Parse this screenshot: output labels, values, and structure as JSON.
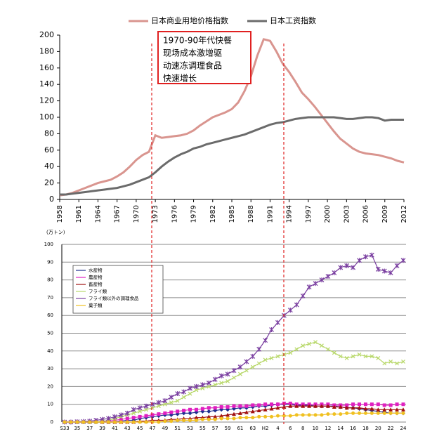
{
  "chart_data": [
    {
      "type": "line",
      "x": [
        1958,
        1959,
        1960,
        1961,
        1962,
        1963,
        1964,
        1965,
        1966,
        1967,
        1968,
        1969,
        1970,
        1971,
        1972,
        1973,
        1974,
        1975,
        1976,
        1977,
        1978,
        1979,
        1980,
        1981,
        1982,
        1983,
        1984,
        1985,
        1986,
        1987,
        1988,
        1989,
        1990,
        1991,
        1992,
        1993,
        1994,
        1995,
        1996,
        1997,
        1998,
        1999,
        2000,
        2001,
        2002,
        2003,
        2004,
        2005,
        2006,
        2007,
        2008,
        2009,
        2010,
        2011,
        2012
      ],
      "xlim": [
        1958,
        2012
      ],
      "xticks": [
        1958,
        1961,
        1964,
        1967,
        1970,
        1973,
        1976,
        1979,
        1982,
        1985,
        1988,
        1991,
        1994,
        1997,
        2000,
        2003,
        2006,
        2009,
        2012
      ],
      "ylim": [
        0,
        200
      ],
      "yticks": [
        0,
        20,
        40,
        60,
        80,
        100,
        120,
        140,
        160,
        180,
        200
      ],
      "annotation": [
        "1970-90年代快餐",
        "现场成本激增驱",
        "动速冻调理食品",
        "快速增长"
      ],
      "series": [
        {
          "name": "日本商业用地价格指数",
          "color": "#d9958f",
          "values": [
            5,
            6,
            8,
            11,
            14,
            17,
            20,
            22,
            24,
            28,
            33,
            40,
            48,
            54,
            58,
            78,
            75,
            76,
            77,
            78,
            80,
            84,
            90,
            95,
            100,
            103,
            106,
            110,
            118,
            132,
            150,
            175,
            195,
            193,
            180,
            165,
            155,
            143,
            130,
            122,
            113,
            103,
            93,
            83,
            74,
            68,
            62,
            58,
            56,
            55,
            54,
            52,
            50,
            47,
            45
          ]
        },
        {
          "name": "日本工资指数",
          "color": "#6b6b6b",
          "values": [
            6,
            6,
            7,
            8,
            9,
            10,
            11,
            12,
            13,
            14,
            16,
            18,
            21,
            24,
            27,
            33,
            40,
            46,
            51,
            55,
            58,
            62,
            64,
            67,
            69,
            71,
            73,
            75,
            77,
            79,
            82,
            85,
            88,
            91,
            93,
            94,
            96,
            98,
            99,
            100,
            100,
            100,
            100,
            100,
            99,
            98,
            98,
            99,
            100,
            100,
            99,
            96,
            97,
            97,
            97
          ]
        }
      ]
    },
    {
      "type": "line",
      "y_label": "(万トン)",
      "categories": [
        "S33",
        null,
        "35",
        null,
        "37",
        null,
        "39",
        null,
        "41",
        null,
        "43",
        null,
        "45",
        null,
        "47",
        null,
        "49",
        null,
        "51",
        null,
        "53",
        null,
        "55",
        null,
        "57",
        null,
        "59",
        null,
        "61",
        null,
        "63",
        null,
        "H2",
        null,
        "4",
        null,
        "6",
        null,
        "8",
        null,
        "10",
        null,
        "12",
        null,
        "14",
        null,
        "16",
        null,
        "18",
        null,
        "20",
        null,
        "22",
        null,
        "24"
      ],
      "ylim": [
        0,
        100
      ],
      "yticks": [
        0,
        10,
        20,
        30,
        40,
        50,
        60,
        70,
        80,
        90,
        100
      ],
      "grid": true,
      "series": [
        {
          "name": "水産物",
          "color": "#1f2f8f",
          "marker": "diamond",
          "values": [
            0,
            0,
            0,
            0,
            0,
            0,
            0,
            0,
            0,
            0.5,
            1,
            1,
            2,
            2.5,
            3,
            3.5,
            4,
            4,
            4.5,
            5,
            5,
            5.5,
            6,
            6,
            6.5,
            7,
            7,
            7.5,
            8,
            8,
            8.5,
            9,
            9,
            9.5,
            10,
            10,
            10,
            9.5,
            9.5,
            9.5,
            9,
            9,
            9,
            9,
            8.5,
            8,
            8,
            7.5,
            7,
            6.5,
            6,
            5.5,
            5,
            5,
            5
          ]
        },
        {
          "name": "農産物",
          "color": "#e020c0",
          "marker": "square",
          "values": [
            0,
            0,
            0,
            0,
            0,
            0,
            0.5,
            0.5,
            1,
            1.5,
            2,
            2.5,
            3,
            3.5,
            4,
            4.5,
            5,
            5.5,
            6,
            6.5,
            7,
            7,
            7.5,
            8,
            8,
            8.5,
            8.5,
            9,
            9,
            9,
            9.5,
            9.5,
            10,
            10,
            10,
            10.5,
            10.5,
            10,
            10,
            10,
            10,
            10,
            10,
            9.5,
            9.5,
            9.5,
            10,
            10,
            10,
            10,
            10,
            9.5,
            9.5,
            10,
            10
          ]
        },
        {
          "name": "畜産物",
          "color": "#a01010",
          "marker": "triangle",
          "values": [
            0,
            0,
            0,
            0,
            0,
            0,
            0,
            0,
            0,
            0,
            0,
            0,
            0.5,
            0.5,
            1,
            1,
            1,
            1.5,
            1.5,
            2,
            2,
            2.5,
            2.5,
            3,
            3,
            3.5,
            4,
            4.5,
            5,
            5.5,
            6,
            6.5,
            7,
            7.5,
            8,
            8.5,
            9,
            9,
            9,
            9,
            9,
            9,
            9,
            8.5,
            8.5,
            8,
            8,
            8,
            7.5,
            7.5,
            7,
            7,
            7,
            7,
            7
          ]
        },
        {
          "name": "フライ類",
          "color": "#b8d86a",
          "marker": "x",
          "values": [
            0,
            0,
            0,
            0,
            0,
            0,
            0.5,
            1,
            2,
            3,
            4,
            5,
            6,
            7,
            8,
            9,
            10,
            11,
            12,
            14,
            16,
            18,
            19,
            20,
            21,
            22,
            23,
            25,
            27,
            29,
            31,
            33,
            35,
            36,
            37,
            38,
            39,
            41,
            43,
            44,
            45,
            43,
            41,
            39,
            37,
            36,
            37,
            38,
            37,
            37,
            36,
            33,
            34,
            33,
            34
          ]
        },
        {
          "name": "フライ類以外の調理食品",
          "color": "#7a3fa0",
          "marker": "star",
          "values": [
            0,
            0,
            0.2,
            0.3,
            0.5,
            1,
            1.5,
            2,
            3,
            4,
            5,
            7,
            8,
            9,
            10,
            11,
            12,
            14,
            16,
            17,
            19,
            20,
            21,
            22,
            24,
            26,
            27,
            29,
            31,
            34,
            37,
            41,
            46,
            52,
            56,
            60,
            63,
            66,
            71,
            76,
            78,
            80,
            82,
            84,
            87,
            88,
            87,
            91,
            93,
            94,
            86,
            85,
            84,
            88,
            91
          ]
        },
        {
          "name": "菓子類",
          "color": "#f0c020",
          "marker": "circle",
          "values": [
            0,
            0,
            0,
            0,
            0,
            0,
            0,
            0,
            0,
            0,
            0,
            0,
            0,
            0,
            0,
            0,
            0.5,
            0.5,
            1,
            1,
            1,
            1,
            1.5,
            1.5,
            1.5,
            2,
            2,
            2,
            2.5,
            2.5,
            2.5,
            3,
            3,
            3,
            3.5,
            3.5,
            3.5,
            4,
            4,
            4,
            4,
            4,
            4.5,
            4.5,
            4.5,
            5,
            5,
            5,
            5,
            5,
            5,
            5,
            5,
            5,
            5
          ]
        }
      ]
    }
  ]
}
